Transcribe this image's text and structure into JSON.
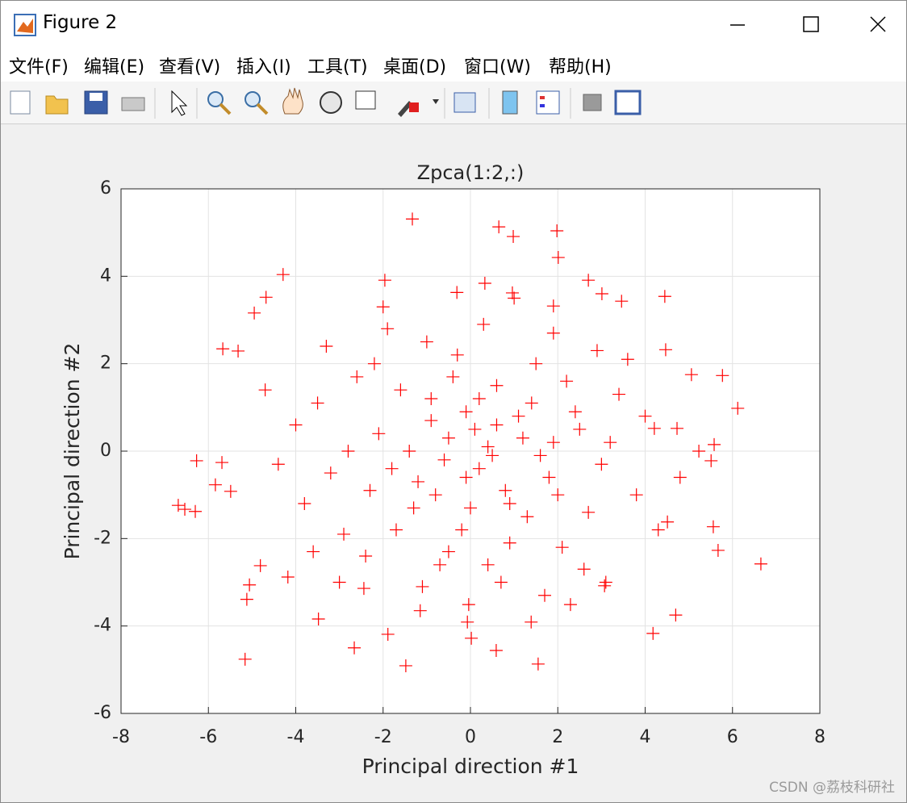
{
  "window": {
    "title": "Figure 2",
    "menu": [
      "文件(F)",
      "编辑(E)",
      "查看(V)",
      "插入(I)",
      "工具(T)",
      "桌面(D)",
      "窗口(W)",
      "帮助(H)"
    ],
    "watermark": "CSDN @荔枝科研社"
  },
  "chart_data": {
    "type": "scatter",
    "title": "Zpca(1:2,:)",
    "x_label": "Principal direction #1",
    "y_label": "Principal direction #2",
    "color": "#ff0000",
    "marker": "+",
    "grid": true,
    "xlim": [
      -8,
      8
    ],
    "ylim": [
      -6,
      6
    ],
    "xticks": [
      -8,
      -6,
      -4,
      -2,
      0,
      2,
      4,
      6,
      8
    ],
    "yticks": [
      -6,
      -4,
      -2,
      0,
      2,
      4,
      6
    ],
    "x": [
      -1.33,
      0.65,
      0.98,
      1.98,
      2.01,
      -4.29,
      -4.68,
      -4.95,
      -5.67,
      -5.32,
      -6.27,
      -5.69,
      -5.84,
      -5.49,
      -6.69,
      -6.54,
      -6.3,
      -5.16,
      -5.12,
      -5.06,
      -3.48,
      -2.66,
      -1.48,
      0.59,
      1.55,
      4.18,
      4.7,
      6.65,
      6.12,
      5.77,
      5.06,
      4.45,
      2.7,
      3.01,
      3.46,
      4.47,
      5.56,
      5.67,
      3.07,
      2.29,
      -0.04,
      -0.07,
      0.02,
      1.39,
      -1.96,
      -0.31,
      0.33,
      0.96,
      1.9,
      4.51,
      5.23,
      5.51,
      5.58,
      -4.81,
      -4.18,
      -2.44,
      -1.15,
      -1.89,
      4.21,
      4.73,
      -0.5,
      0.2,
      1.1,
      -1.2,
      0.6,
      -0.9,
      1.8,
      -2.1,
      0.0,
      2.4,
      -1.7,
      0.9,
      -0.3,
      1.5,
      -2.6,
      3.0,
      -3.2,
      0.4,
      -0.1,
      0.8,
      -1.4,
      1.3,
      -0.7,
      2.1,
      -2.9,
      -3.5,
      3.4,
      2.7,
      -1.9,
      0.3,
      -0.6,
      0.1,
      1.9,
      -2.3,
      2.9,
      -4.0,
      3.8,
      -3.8,
      4.0,
      -4.4,
      0.7,
      -1.1,
      1.7,
      -2.0,
      1.0,
      -0.2,
      0.5,
      -0.9,
      1.4,
      -1.6,
      2.2,
      -2.4,
      2.6,
      -3.3,
      3.6,
      -0.4,
      0.9,
      -1.3,
      1.2,
      -0.8,
      0.6,
      2.0,
      -2.8,
      3.2,
      -3.6,
      4.3,
      -4.7,
      4.8,
      -0.1,
      0.2,
      -1.0,
      1.6,
      -2.2,
      2.5,
      -3.0,
      3.1,
      -0.5,
      0.4,
      -1.8,
      1.9
    ],
    "values": [
      5.31,
      5.13,
      4.91,
      5.04,
      4.43,
      4.04,
      3.52,
      3.16,
      2.34,
      2.29,
      -0.22,
      -0.26,
      -0.77,
      -0.92,
      -1.24,
      -1.33,
      -1.38,
      -4.76,
      -3.39,
      -3.06,
      -3.84,
      -4.5,
      -4.91,
      -4.56,
      -4.87,
      -4.17,
      -3.75,
      -2.58,
      0.98,
      1.73,
      1.75,
      3.54,
      3.91,
      3.6,
      3.43,
      2.32,
      -1.73,
      -2.27,
      -3.08,
      -3.51,
      -3.51,
      -3.91,
      -4.28,
      -3.91,
      3.91,
      3.63,
      3.84,
      3.62,
      3.32,
      -1.62,
      0.0,
      -0.22,
      0.15,
      -2.62,
      -2.88,
      -3.14,
      -3.65,
      -4.19,
      0.52,
      0.52,
      0.3,
      -0.4,
      0.8,
      -0.7,
      1.5,
      1.2,
      -0.6,
      0.4,
      -1.3,
      0.9,
      -1.8,
      -2.1,
      2.2,
      2.0,
      1.7,
      -0.3,
      -0.5,
      0.1,
      0.9,
      -0.9,
      0.0,
      -1.5,
      -2.6,
      -2.2,
      -1.9,
      1.1,
      1.3,
      -1.4,
      2.8,
      2.9,
      -0.2,
      0.5,
      0.2,
      -0.9,
      2.3,
      0.6,
      -1.0,
      -1.2,
      0.8,
      -0.3,
      -3.0,
      -3.1,
      -3.3,
      3.3,
      3.5,
      -1.8,
      -0.1,
      0.7,
      1.1,
      1.4,
      1.6,
      -2.4,
      -2.7,
      2.4,
      2.1,
      1.7,
      -1.2,
      -1.3,
      0.3,
      -1.0,
      0.6,
      -1.0,
      0.0,
      0.2,
      -2.3,
      -1.8,
      1.4,
      -0.6,
      -0.6,
      1.2,
      2.5,
      -0.1,
      2.0,
      0.5,
      -3.0,
      -3.0,
      -2.3,
      -2.6,
      -0.4,
      2.7
    ]
  }
}
